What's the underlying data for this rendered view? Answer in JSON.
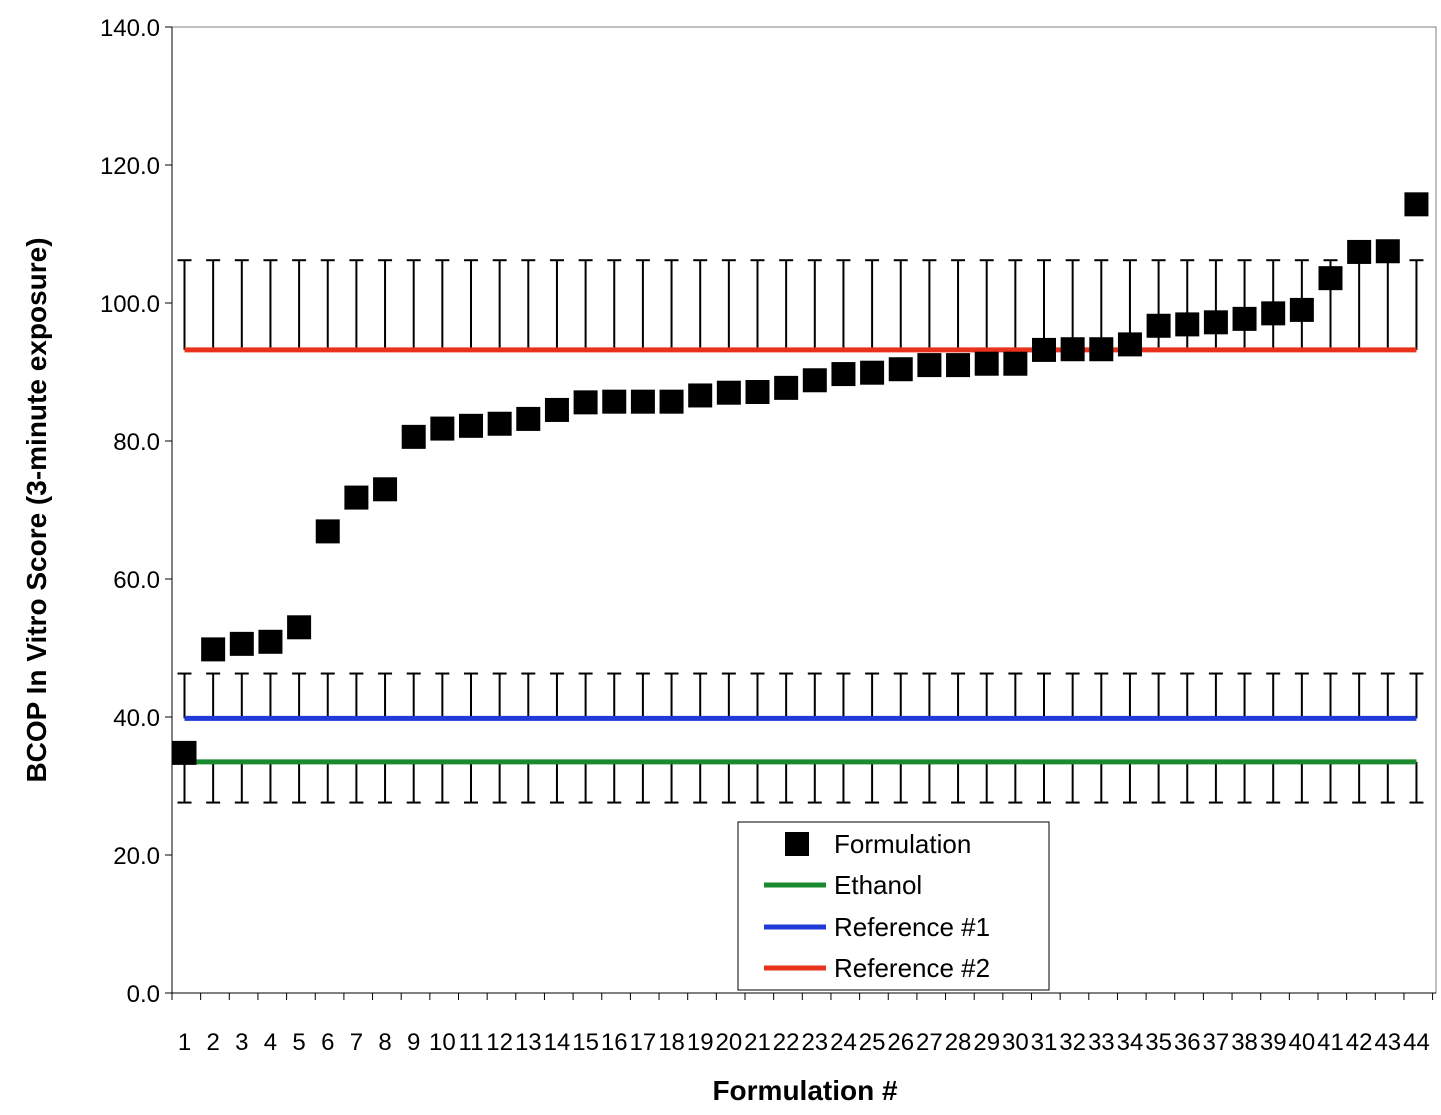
{
  "chart_data": {
    "type": "scatter",
    "title": "",
    "xlabel": "Formulation #",
    "ylabel": "BCOP In Vitro Score (3-minute exposure)",
    "ylim": [
      0,
      140
    ],
    "y_ticks": [
      "0.0",
      "20.0",
      "40.0",
      "60.0",
      "80.0",
      "100.0",
      "120.0",
      "140.0"
    ],
    "x_categories": [
      "1",
      "2",
      "3",
      "4",
      "5",
      "6",
      "7",
      "8",
      "9",
      "10",
      "11",
      "12",
      "13",
      "14",
      "15",
      "16",
      "17",
      "18",
      "19",
      "20",
      "21",
      "22",
      "23",
      "24",
      "25",
      "26",
      "27",
      "28",
      "29",
      "30",
      "31",
      "32",
      "33",
      "34",
      "35",
      "36",
      "37",
      "38",
      "39",
      "40",
      "41",
      "42",
      "43",
      "44"
    ],
    "grid": false,
    "legend_position": "bottom-center",
    "series": [
      {
        "name": "Formulation",
        "kind": "markers",
        "color": "#000000",
        "values": [
          34.8,
          49.8,
          50.6,
          50.9,
          53.0,
          66.9,
          71.8,
          73.0,
          80.6,
          81.8,
          82.2,
          82.5,
          83.2,
          84.5,
          85.6,
          85.7,
          85.7,
          85.7,
          86.6,
          87.0,
          87.1,
          87.7,
          88.8,
          89.7,
          89.9,
          90.4,
          91.0,
          91.0,
          91.2,
          91.2,
          93.2,
          93.3,
          93.3,
          94.0,
          96.7,
          96.9,
          97.2,
          97.7,
          98.5,
          99.0,
          103.6,
          107.4,
          107.5,
          114.3
        ]
      },
      {
        "name": "Ethanol",
        "kind": "line",
        "color": "#1a8a2e",
        "value": 33.5,
        "error_low": 27.6,
        "error_high": 33.5
      },
      {
        "name": "Reference #1",
        "kind": "line",
        "color": "#1f3ad6",
        "value": 39.8,
        "error_low": 39.8,
        "error_high": 46.3
      },
      {
        "name": "Reference #2",
        "kind": "line",
        "color": "#e8321c",
        "value": 93.2,
        "error_low": 93.2,
        "error_high": 106.2
      }
    ]
  }
}
